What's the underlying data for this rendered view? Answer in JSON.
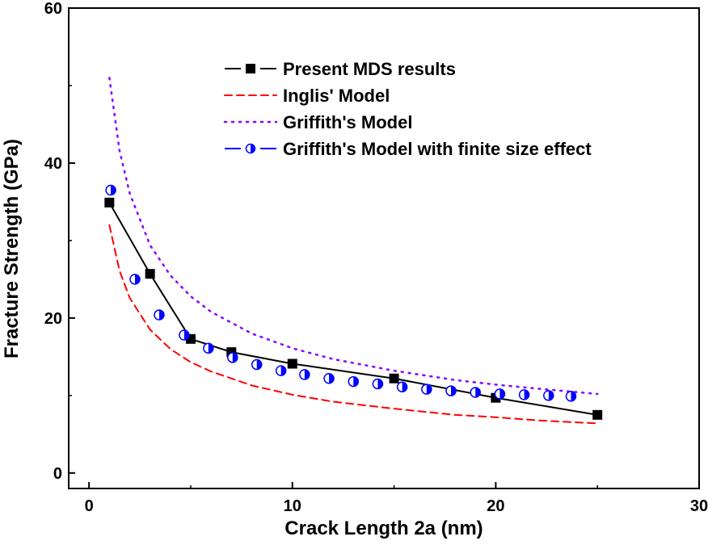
{
  "chart_data": {
    "type": "line",
    "title": "",
    "xlabel": "Crack Length 2a (nm)",
    "ylabel": "Fracture Strength (GPa)",
    "xlim": [
      -1,
      30
    ],
    "ylim": [
      -2,
      60
    ],
    "xticks": [
      0,
      10,
      20,
      30
    ],
    "yticks": [
      0,
      20,
      40,
      60
    ],
    "grid": false,
    "legend_position": "top-right",
    "series": [
      {
        "name": "Present MDS results",
        "style": "line-square",
        "color": "#000000",
        "x": [
          1,
          3,
          5,
          7,
          10,
          15,
          20,
          25
        ],
        "y": [
          34.9,
          25.7,
          17.3,
          15.6,
          14.1,
          12.2,
          9.7,
          7.5
        ]
      },
      {
        "name": "Inglis' Model",
        "style": "dashed",
        "color": "#ff0000",
        "formula_points": {
          "x": [
            1,
            1.5,
            2,
            3,
            4,
            5,
            6,
            8,
            10,
            12,
            15,
            18,
            20,
            22,
            25
          ],
          "y": [
            32,
            26.1,
            22.6,
            18.5,
            16,
            14.3,
            13.1,
            11.3,
            10.1,
            9.2,
            8.3,
            7.5,
            7.2,
            6.8,
            6.4
          ]
        }
      },
      {
        "name": "Griffith's Model",
        "style": "dotted",
        "color": "#8b00ff",
        "formula_points": {
          "x": [
            1,
            1.5,
            2,
            3,
            4,
            5,
            6,
            8,
            10,
            12,
            15,
            18,
            20,
            22,
            25
          ],
          "y": [
            51,
            41.6,
            36.1,
            29.4,
            25.5,
            22.8,
            20.8,
            18,
            16.1,
            14.7,
            13.2,
            12,
            11.4,
            10.9,
            10.2
          ]
        }
      },
      {
        "name": "Griffith's Model with finite size effect",
        "style": "half-circle",
        "color": "#0000ff",
        "x": [
          1.07,
          2.26,
          3.45,
          4.68,
          5.87,
          7.06,
          8.25,
          9.44,
          10.6,
          11.8,
          13,
          14.2,
          15.4,
          16.6,
          17.8,
          19,
          20.2,
          21.4,
          22.6,
          23.7
        ],
        "y": [
          36.5,
          25,
          20.4,
          17.8,
          16.1,
          14.9,
          14,
          13.2,
          12.7,
          12.2,
          11.8,
          11.5,
          11.1,
          10.8,
          10.6,
          10.4,
          10.2,
          10.1,
          10,
          9.9
        ]
      }
    ]
  }
}
